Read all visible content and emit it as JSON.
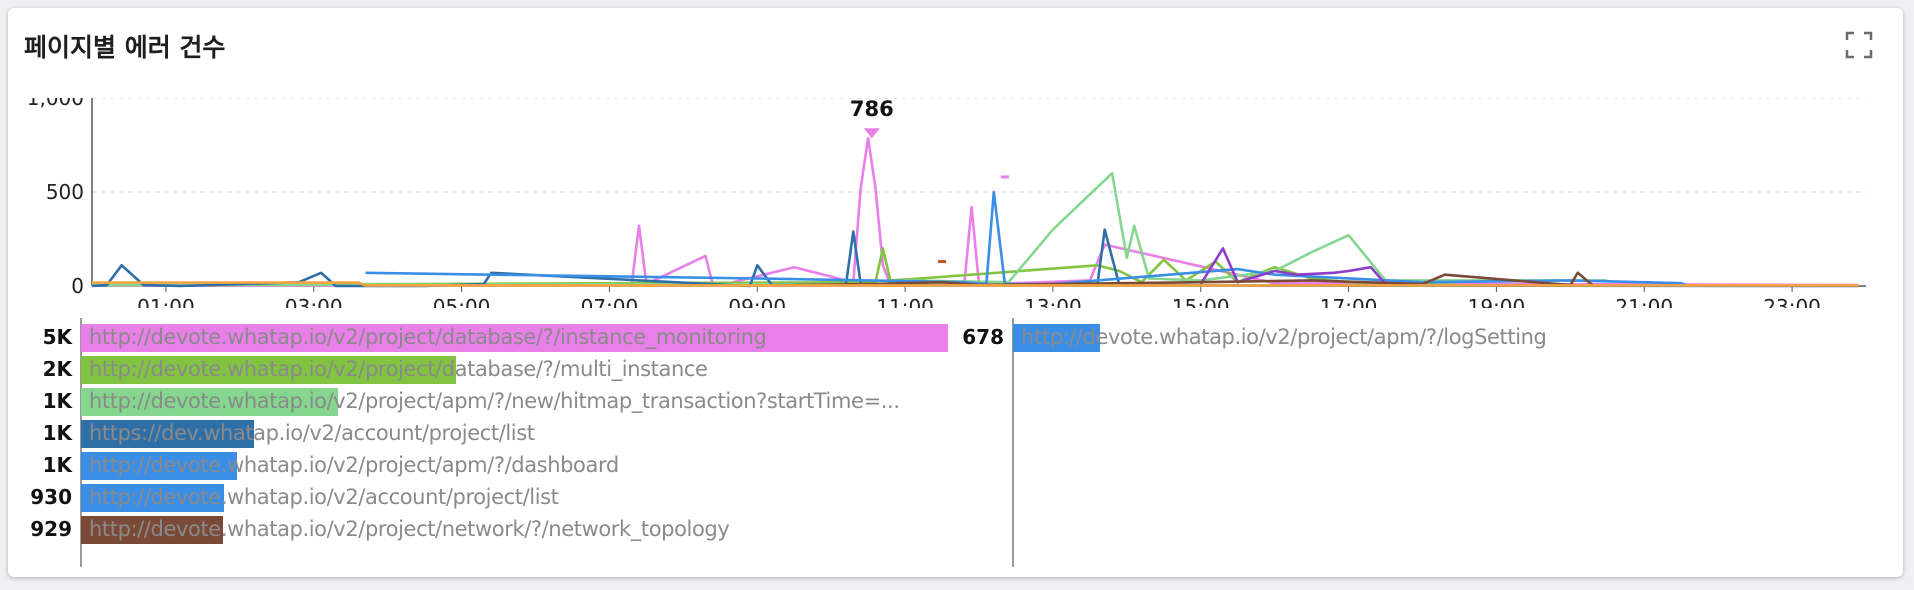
{
  "widget": {
    "title": "페이지별 에러 건수",
    "expand_icon": "fullscreen-icon"
  },
  "chart_data": {
    "type": "line",
    "title": "",
    "xlabel": "",
    "ylabel": "",
    "ylim": [
      0,
      1000
    ],
    "y_ticks": [
      "1,000",
      "500",
      "0"
    ],
    "x_tick_labels": [
      "01:00",
      "03:00",
      "05:00",
      "07:00",
      "09:00",
      "11:00",
      "13:00",
      "15:00",
      "17:00",
      "19:00",
      "21:00",
      "23:00"
    ],
    "grid": "horizontal-dashed",
    "peak_label": "786",
    "peak_value": 786,
    "peak_hour": 10.55,
    "series": [
      {
        "color": "#e97fe8",
        "x": [
          0,
          7.3,
          7.4,
          7.5,
          8.3,
          8.4,
          8.5,
          9.5,
          10.3,
          10.4,
          10.5,
          10.6,
          10.7,
          10.8,
          11.0,
          11.8,
          11.9,
          12.0,
          13.5,
          13.7,
          16,
          23.9
        ],
        "values": [
          2,
          5,
          320,
          10,
          160,
          5,
          3,
          100,
          20,
          520,
          786,
          520,
          110,
          8,
          4,
          5,
          420,
          8,
          30,
          220,
          15,
          5
        ]
      },
      {
        "color": "#82c341",
        "x": [
          0,
          10.6,
          10.7,
          10.8,
          11.2,
          13.6,
          13.9,
          14.2,
          14.5,
          14.8,
          15.2,
          15.5,
          16.0,
          16.5,
          17.0,
          17.5,
          18.5
        ],
        "values": [
          3,
          20,
          200,
          30,
          40,
          110,
          80,
          20,
          140,
          30,
          130,
          20,
          100,
          40,
          20,
          15,
          5
        ]
      },
      {
        "color": "#85d68f",
        "x": [
          0,
          10.9,
          11.0,
          12.4,
          13.0,
          13.8,
          14.0,
          14.1,
          14.3,
          15.0,
          16.0,
          16.5,
          17.0,
          17.5,
          20.5
        ],
        "values": [
          5,
          10,
          30,
          20,
          300,
          600,
          150,
          320,
          40,
          30,
          80,
          180,
          270,
          30,
          30
        ]
      },
      {
        "color": "#2f6fa8",
        "x": [
          0,
          0.2,
          0.4,
          0.7,
          1.2,
          2.8,
          3.1,
          3.3,
          4.5,
          5.3,
          5.4,
          8.9,
          9.0,
          9.2,
          10.2,
          10.3,
          10.4,
          11.0,
          13.6,
          13.7,
          13.9,
          16,
          23.9
        ],
        "values": [
          0,
          5,
          110,
          5,
          0,
          20,
          70,
          0,
          0,
          10,
          70,
          0,
          110,
          5,
          5,
          290,
          10,
          5,
          5,
          300,
          5,
          3,
          0
        ]
      },
      {
        "color": "#3b8ee6",
        "x": [
          3.7,
          9.0,
          10.5,
          11.8,
          12.1,
          12.2,
          12.35,
          13.0,
          15.5,
          16.0,
          18.0,
          20.0,
          21.5,
          21.6
        ],
        "values": [
          70,
          40,
          30,
          20,
          10,
          500,
          10,
          10,
          90,
          60,
          20,
          30,
          15,
          0
        ]
      },
      {
        "color": "#8e3dc9",
        "x": [
          15.0,
          15.3,
          15.5,
          16.0,
          16.3,
          16.8,
          17.0,
          17.3,
          17.5,
          18.0
        ],
        "values": [
          10,
          200,
          20,
          80,
          60,
          70,
          80,
          100,
          10,
          5
        ]
      },
      {
        "color": "#7a4a36",
        "x": [
          9.5,
          10.5,
          11.5,
          12.0,
          13.0,
          15.0,
          16.5,
          18.0,
          18.3,
          20.0,
          20.1,
          20.3
        ],
        "values": [
          5,
          10,
          20,
          5,
          10,
          20,
          30,
          10,
          60,
          5,
          70,
          5
        ]
      },
      {
        "color": "#f5a441",
        "x": [
          0,
          1,
          2,
          3,
          3.6,
          3.7,
          6,
          9,
          12,
          15,
          18,
          21,
          23.9
        ],
        "values": [
          18,
          18,
          18,
          18,
          18,
          3,
          3,
          3,
          3,
          3,
          3,
          3,
          3
        ]
      }
    ],
    "markers": [
      {
        "x": 10.55,
        "y": 786,
        "shape": "triangle-down",
        "color": "#e97fe8"
      },
      {
        "x": 11.5,
        "y": 130,
        "shape": "dash",
        "color": "#c4552f"
      },
      {
        "x": 12.35,
        "y": 580,
        "shape": "dash",
        "color": "#e97fe8"
      }
    ]
  },
  "legend": {
    "left": [
      {
        "value": "5K",
        "url": "http://devote.whatap.io/v2/project/database/?/instance_monitoring",
        "color": "#e97fe8",
        "fraction": 1.0
      },
      {
        "value": "2K",
        "url": "http://devote.whatap.io/v2/project/database/?/multi_instance",
        "color": "#82c341",
        "fraction": 0.432
      },
      {
        "value": "1K",
        "url": "http://devote.whatap.io/v2/project/apm/?/new/hitmap_transaction?startTime=...",
        "color": "#85d68f",
        "fraction": 0.296
      },
      {
        "value": "1K",
        "url": "https://dev.whatap.io/v2/account/project/list",
        "color": "#2f6fa8",
        "fraction": 0.2
      },
      {
        "value": "1K",
        "url": "http://devote.whatap.io/v2/project/apm/?/dashboard",
        "color": "#3b8ee6",
        "fraction": 0.18
      },
      {
        "value": "930",
        "url": "http://devote.whatap.io/v2/account/project/list",
        "color": "#3b8ee6",
        "fraction": 0.165
      },
      {
        "value": "929",
        "url": "http://devote.whatap.io/v2/project/network/?/network_topology",
        "color": "#7a4a36",
        "fraction": 0.164
      }
    ],
    "right": [
      {
        "value": "678",
        "url": "http://devote.whatap.io/v2/project/apm/?/logSetting",
        "color": "#3b8ee6",
        "fraction": 0.118
      }
    ]
  }
}
